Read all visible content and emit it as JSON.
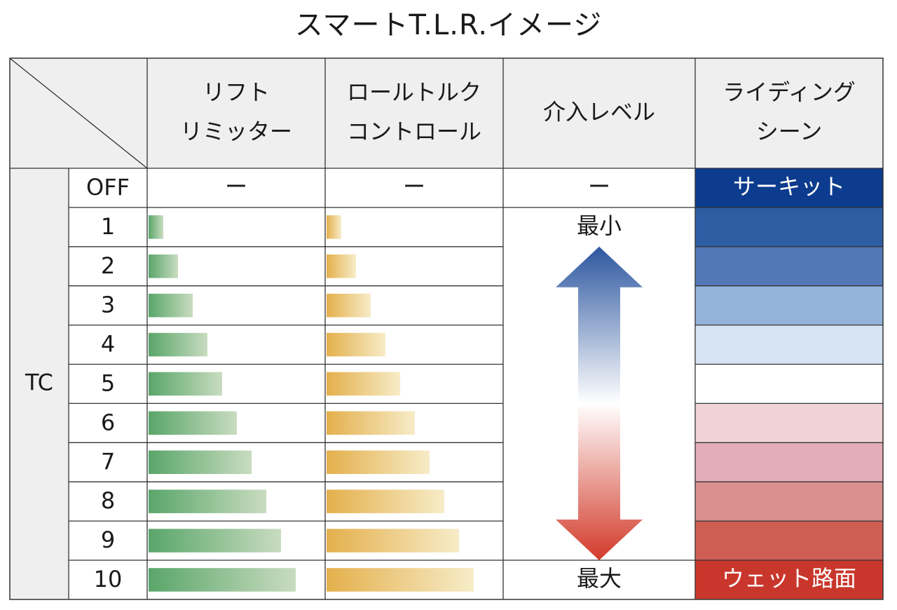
{
  "title": "スマートT.L.R.イメージ",
  "chart_data": {
    "type": "table",
    "group_label": "TC",
    "columns": [
      {
        "key": "lift",
        "label_lines": [
          "リフト",
          "リミッター"
        ]
      },
      {
        "key": "roll",
        "label_lines": [
          "ロールトルク",
          "コントロール"
        ]
      },
      {
        "key": "intervention",
        "label_lines": [
          "介入レベル"
        ]
      },
      {
        "key": "scene",
        "label_lines": [
          "ライディング",
          "シーン"
        ]
      }
    ],
    "rows": [
      "OFF",
      "1",
      "2",
      "3",
      "4",
      "5",
      "6",
      "7",
      "8",
      "9",
      "10"
    ],
    "off_marker": "ー",
    "lift_limiter": [
      null,
      1,
      2,
      3,
      4,
      5,
      6,
      7,
      8,
      9,
      10
    ],
    "roll_torque_control": [
      null,
      1,
      2,
      3,
      4,
      5,
      6,
      7,
      8,
      9,
      10
    ],
    "intervention_level": {
      "min_label": "最小",
      "max_label": "最大",
      "min_row": "1",
      "max_row": "10"
    },
    "riding_scene": {
      "start_label": "サーキット",
      "end_label": "ウェット路面",
      "colors": [
        "#0d3b8e",
        "#2d5da3",
        "#5278b7",
        "#93b3db",
        "#d6e3f2",
        "#ffffff",
        "#f0d3d7",
        "#e3aeb7",
        "#d9908e",
        "#cf5e55",
        "#c9372c"
      ]
    },
    "colors": {
      "lift_start": "#5aa66a",
      "lift_end": "#c9dcc0",
      "roll_start": "#e4b04c",
      "roll_end": "#f7ecc8",
      "arrow_top": "#2d57a0",
      "arrow_mid": "#ffffff",
      "arrow_bottom": "#d23a2a",
      "header_bg": "#efefef",
      "border": "#333333"
    }
  }
}
